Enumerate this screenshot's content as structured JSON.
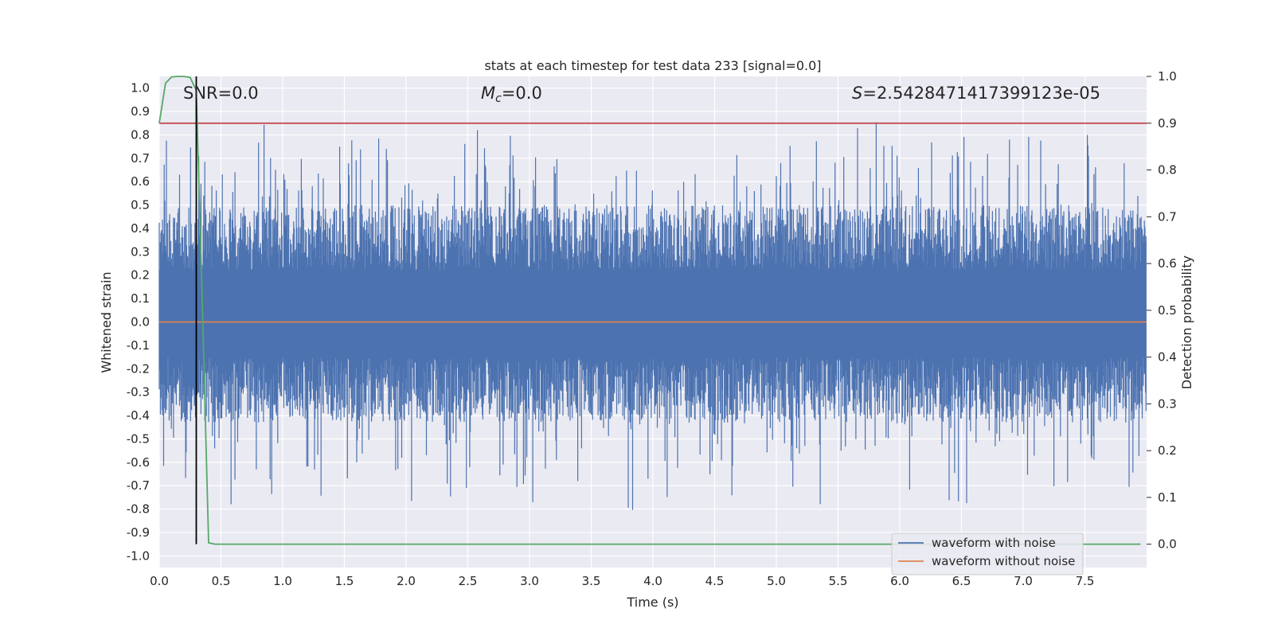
{
  "chart_data": {
    "type": "line",
    "title": "stats at each timestep for test data 233 [signal=0.0]",
    "xlabel": "Time (s)",
    "ylabel": "Whitened strain",
    "ylabel_right": "Detection probability",
    "xlim": [
      0.0,
      8.0
    ],
    "ylim": [
      -1.05,
      1.05
    ],
    "ylim_right": [
      -0.05,
      1.0
    ],
    "x_ticks": [
      "0.0",
      "0.5",
      "1.0",
      "1.5",
      "2.0",
      "2.5",
      "3.0",
      "3.5",
      "4.0",
      "4.5",
      "5.0",
      "5.5",
      "6.0",
      "6.5",
      "7.0",
      "7.5"
    ],
    "y_ticks": [
      "1.0",
      "0.9",
      "0.8",
      "0.7",
      "0.6",
      "0.5",
      "0.4",
      "0.3",
      "0.2",
      "0.1",
      "0.0",
      "-0.1",
      "-0.2",
      "-0.3",
      "-0.4",
      "-0.5",
      "-0.6",
      "-0.7",
      "-0.8",
      "-0.9",
      "-1.0"
    ],
    "y_ticks_right": [
      "1.0",
      "0.9",
      "0.8",
      "0.7",
      "0.6",
      "0.5",
      "0.4",
      "0.3",
      "0.2",
      "0.1",
      "0.0"
    ],
    "grid": true,
    "legend_position": "lower-right",
    "annotations": {
      "snr": "SNR=0.0",
      "mc_symbol": "M",
      "mc_sub": "c",
      "mc_value": "=0.0",
      "s_symbol": "S",
      "s_value": "=2.5428471417399123e-05"
    },
    "series": [
      {
        "name": "waveform with noise",
        "axis": "left",
        "color": "#4c72b0",
        "description_values": "dense noise, mostly within [-0.88, 0.96]"
      },
      {
        "name": "waveform without noise",
        "axis": "left",
        "color": "#dd8452",
        "x": [
          0.0,
          8.0
        ],
        "y": [
          0.0,
          0.0
        ]
      },
      {
        "axis": "right",
        "color": "#55a868",
        "x": [
          0.0,
          0.05,
          0.1,
          0.15,
          0.2,
          0.25,
          0.3,
          0.35,
          0.4,
          0.45,
          0.5,
          1.0,
          2.0,
          3.0,
          4.0,
          5.0,
          6.0,
          7.0,
          7.95
        ],
        "y": [
          0.9,
          0.985,
          0.999,
          1.0,
          1.0,
          0.998,
          0.97,
          0.5,
          0.003,
          0.0,
          0.0,
          0.0,
          0.0,
          0.0,
          0.0,
          0.0,
          0.0,
          0.0,
          0.0
        ]
      },
      {
        "axis": "right",
        "color": "#c44e52",
        "x": [
          0.0,
          8.0
        ],
        "y": [
          0.9,
          0.9
        ]
      },
      {
        "axis": "right",
        "color": "#000000",
        "x": [
          0.3,
          0.3
        ],
        "y": [
          0.0,
          1.0
        ]
      }
    ]
  }
}
